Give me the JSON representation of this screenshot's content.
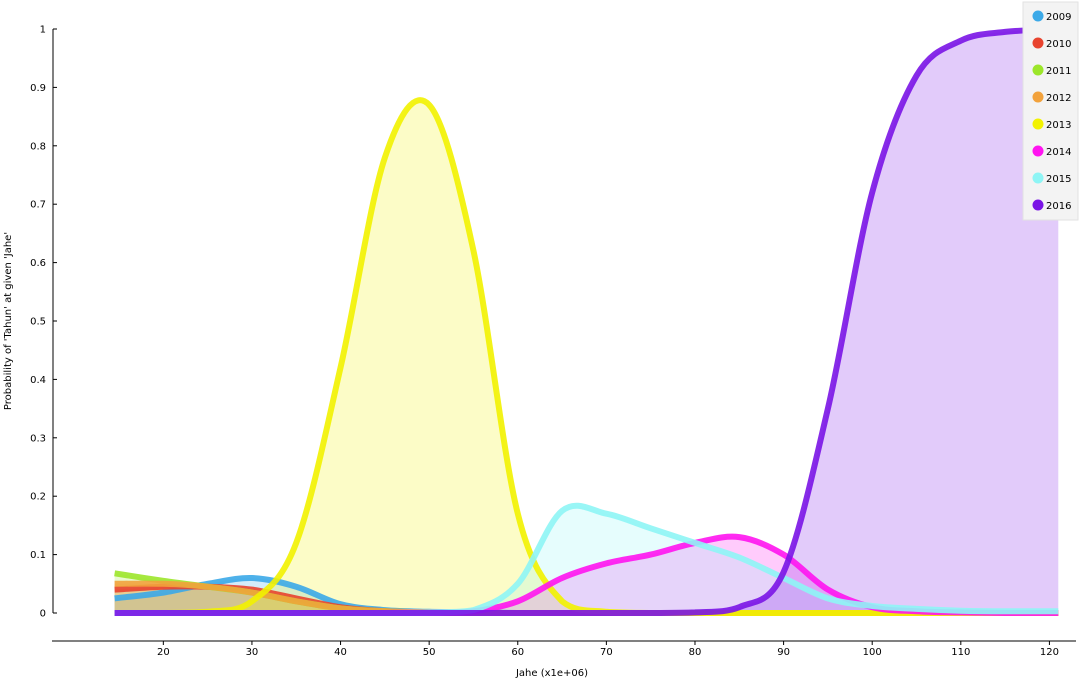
{
  "chart_data": {
    "type": "area",
    "xlabel": "Jahe (x1e+06)",
    "ylabel": "Probability of 'Tahun' at given 'Jahe'",
    "xlim": [
      8,
      123
    ],
    "ylim": [
      0,
      1
    ],
    "x_ticks": [
      "20",
      "30",
      "40",
      "50",
      "60",
      "70",
      "80",
      "90",
      "100",
      "110",
      "120"
    ],
    "y_ticks": [
      "0",
      "0.1",
      "0.2",
      "0.3",
      "0.4",
      "0.5",
      "0.6",
      "0.7",
      "0.8",
      "0.9",
      "1"
    ],
    "legend_position": "top-right",
    "grid": false,
    "x": [
      14.5,
      20,
      25,
      30,
      35,
      40,
      45,
      50,
      55,
      60,
      65,
      70,
      75,
      80,
      85,
      90,
      95,
      100,
      105,
      110,
      115,
      121
    ],
    "series": [
      {
        "name": "2009",
        "color": "#3BA9E8",
        "values": [
          0.025,
          0.035,
          0.05,
          0.06,
          0.045,
          0.015,
          0.005,
          0.002,
          0.001,
          0,
          0,
          0,
          0,
          0,
          0,
          0,
          0,
          0,
          0,
          0,
          0,
          0
        ]
      },
      {
        "name": "2010",
        "color": "#E8432E",
        "values": [
          0.04,
          0.045,
          0.045,
          0.04,
          0.025,
          0.01,
          0.003,
          0.001,
          0,
          0,
          0,
          0,
          0,
          0,
          0,
          0,
          0,
          0,
          0,
          0,
          0,
          0
        ]
      },
      {
        "name": "2011",
        "color": "#9CE62A",
        "values": [
          0.068,
          0.055,
          0.045,
          0.035,
          0.02,
          0.008,
          0.003,
          0.001,
          0,
          0,
          0,
          0,
          0,
          0,
          0,
          0,
          0,
          0,
          0,
          0,
          0,
          0
        ]
      },
      {
        "name": "2012",
        "color": "#F2A23C",
        "values": [
          0.05,
          0.05,
          0.045,
          0.035,
          0.02,
          0.008,
          0.003,
          0.001,
          0,
          0,
          0,
          0,
          0,
          0,
          0,
          0,
          0,
          0,
          0,
          0,
          0,
          0
        ]
      },
      {
        "name": "2013",
        "color": "#F2F200",
        "values": [
          0,
          0,
          0.002,
          0.02,
          0.12,
          0.42,
          0.78,
          0.87,
          0.62,
          0.17,
          0.02,
          0.002,
          0,
          0,
          0,
          0,
          0,
          0,
          0,
          0,
          0,
          0
        ]
      },
      {
        "name": "2014",
        "color": "#FF14F0",
        "values": [
          0,
          0,
          0,
          0,
          0,
          0,
          0,
          0.001,
          0.003,
          0.02,
          0.06,
          0.085,
          0.1,
          0.12,
          0.13,
          0.1,
          0.04,
          0.01,
          0.003,
          0.001,
          0,
          0
        ]
      },
      {
        "name": "2015",
        "color": "#8EF5F5",
        "values": [
          0,
          0,
          0,
          0,
          0,
          0,
          0,
          0.001,
          0.005,
          0.05,
          0.175,
          0.17,
          0.145,
          0.12,
          0.095,
          0.06,
          0.025,
          0.012,
          0.007,
          0.004,
          0.003,
          0.003
        ]
      },
      {
        "name": "2016",
        "color": "#7A14E6",
        "values": [
          0,
          0,
          0,
          0,
          0,
          0,
          0,
          0,
          0,
          0,
          0,
          0,
          0,
          0.001,
          0.01,
          0.07,
          0.35,
          0.72,
          0.92,
          0.98,
          0.995,
          1.0
        ]
      }
    ]
  }
}
